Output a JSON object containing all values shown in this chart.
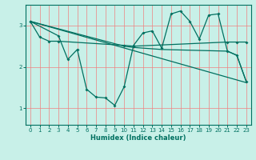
{
  "xlabel": "Humidex (Indice chaleur)",
  "bg_color": "#c8f0e8",
  "line_color": "#007060",
  "grid_color": "#f08080",
  "xlim": [
    -0.5,
    23.5
  ],
  "ylim": [
    0.6,
    3.5
  ],
  "xticks": [
    0,
    1,
    2,
    3,
    4,
    5,
    6,
    7,
    8,
    9,
    10,
    11,
    12,
    13,
    14,
    15,
    16,
    17,
    18,
    19,
    20,
    21,
    22,
    23
  ],
  "yticks": [
    1,
    2,
    3
  ],
  "line1_x": [
    0,
    1,
    2,
    3,
    10,
    11,
    21,
    22,
    23
  ],
  "line1_y": [
    3.1,
    2.72,
    2.62,
    2.62,
    2.52,
    2.5,
    2.6,
    2.6,
    2.6
  ],
  "line2_x": [
    0,
    3,
    4,
    5,
    6,
    7,
    8,
    9,
    10,
    11,
    12,
    13,
    14,
    15,
    16,
    17,
    18,
    19,
    20,
    21,
    22,
    23
  ],
  "line2_y": [
    3.1,
    2.75,
    2.18,
    2.42,
    1.46,
    1.27,
    1.25,
    1.07,
    1.52,
    2.52,
    2.82,
    2.87,
    2.45,
    3.28,
    3.35,
    3.1,
    2.67,
    3.25,
    3.28,
    2.38,
    2.28,
    1.65
  ],
  "line3_x": [
    0,
    23
  ],
  "line3_y": [
    3.1,
    1.62
  ],
  "line4_x": [
    0,
    10,
    11,
    14,
    21,
    22,
    23
  ],
  "line4_y": [
    3.1,
    2.5,
    2.47,
    2.42,
    2.38,
    2.28,
    1.65
  ]
}
